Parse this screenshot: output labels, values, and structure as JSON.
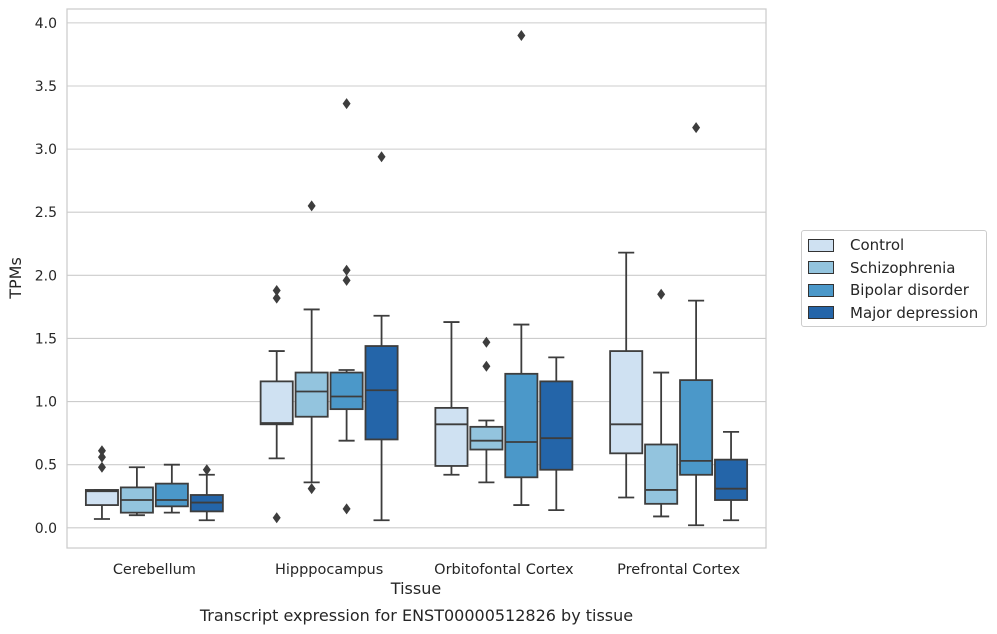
{
  "caption": "Transcript expression for ENST00000512826 by tissue",
  "chart_data": {
    "type": "boxplot",
    "xlabel": "Tissue",
    "ylabel": "TPMs",
    "ylim": [
      -0.16,
      4.11
    ],
    "yticks": [
      "0.0",
      "0.5",
      "1.0",
      "1.5",
      "2.0",
      "2.5",
      "3.0",
      "3.5",
      "4.0"
    ],
    "grid": true,
    "legend_position": "right",
    "categories": [
      "Cerebellum",
      "Hipppocampus",
      "Orbitofontal Cortex",
      "Prefrontal Cortex"
    ],
    "series": [
      {
        "name": "Control",
        "color": "#cfe1f2",
        "boxes": [
          {
            "whislo": 0.07,
            "q1": 0.18,
            "med": 0.29,
            "q3": 0.3,
            "whishi": 0.3,
            "fliers": [
              0.48,
              0.56,
              0.61
            ]
          },
          {
            "whislo": 0.55,
            "q1": 0.82,
            "med": 0.83,
            "q3": 1.16,
            "whishi": 1.4,
            "fliers": [
              0.08,
              1.82,
              1.88
            ]
          },
          {
            "whislo": 0.42,
            "q1": 0.49,
            "med": 0.82,
            "q3": 0.95,
            "whishi": 1.63,
            "fliers": []
          },
          {
            "whislo": 0.24,
            "q1": 0.59,
            "med": 0.82,
            "q3": 1.4,
            "whishi": 2.18,
            "fliers": []
          }
        ]
      },
      {
        "name": "Schizophrenia",
        "color": "#93c4de",
        "boxes": [
          {
            "whislo": 0.1,
            "q1": 0.12,
            "med": 0.22,
            "q3": 0.32,
            "whishi": 0.48,
            "fliers": []
          },
          {
            "whislo": 0.36,
            "q1": 0.88,
            "med": 1.08,
            "q3": 1.23,
            "whishi": 1.73,
            "fliers": [
              0.31,
              2.55
            ]
          },
          {
            "whislo": 0.36,
            "q1": 0.62,
            "med": 0.69,
            "q3": 0.8,
            "whishi": 0.85,
            "fliers": [
              1.28,
              1.47
            ]
          },
          {
            "whislo": 0.09,
            "q1": 0.19,
            "med": 0.3,
            "q3": 0.66,
            "whishi": 1.23,
            "fliers": [
              1.85
            ]
          }
        ]
      },
      {
        "name": "Bipolar disorder",
        "color": "#4b98c9",
        "boxes": [
          {
            "whislo": 0.12,
            "q1": 0.17,
            "med": 0.22,
            "q3": 0.35,
            "whishi": 0.5,
            "fliers": []
          },
          {
            "whislo": 0.69,
            "q1": 0.94,
            "med": 1.04,
            "q3": 1.23,
            "whishi": 1.25,
            "fliers": [
              0.15,
              1.96,
              2.04,
              3.36
            ]
          },
          {
            "whislo": 0.18,
            "q1": 0.4,
            "med": 0.68,
            "q3": 1.22,
            "whishi": 1.61,
            "fliers": [
              3.9
            ]
          },
          {
            "whislo": 0.02,
            "q1": 0.42,
            "med": 0.53,
            "q3": 1.17,
            "whishi": 1.8,
            "fliers": [
              3.17
            ]
          }
        ]
      },
      {
        "name": "Major depression",
        "color": "#2465a9",
        "boxes": [
          {
            "whislo": 0.06,
            "q1": 0.13,
            "med": 0.2,
            "q3": 0.26,
            "whishi": 0.42,
            "fliers": [
              0.46
            ]
          },
          {
            "whislo": 0.06,
            "q1": 0.7,
            "med": 1.09,
            "q3": 1.44,
            "whishi": 1.68,
            "fliers": [
              2.94
            ]
          },
          {
            "whislo": 0.14,
            "q1": 0.46,
            "med": 0.71,
            "q3": 1.16,
            "whishi": 1.35,
            "fliers": []
          },
          {
            "whislo": 0.06,
            "q1": 0.22,
            "med": 0.31,
            "q3": 0.54,
            "whishi": 0.76,
            "fliers": []
          }
        ]
      }
    ]
  }
}
